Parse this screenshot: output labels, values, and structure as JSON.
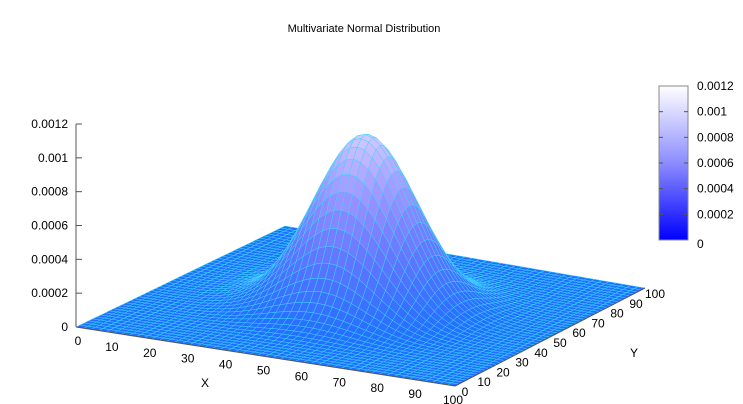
{
  "chart_data": {
    "type": "surface3d",
    "title": "Multivariate Normal Distribution",
    "xlabel": "X",
    "ylabel": "Y",
    "zlabel": "",
    "x_ticks": [
      0,
      10,
      20,
      30,
      40,
      50,
      60,
      70,
      80,
      90,
      100
    ],
    "y_ticks": [
      0,
      10,
      20,
      30,
      40,
      50,
      60,
      70,
      80,
      90,
      100
    ],
    "z_ticks": [
      "0",
      "0.0002",
      "0.0004",
      "0.0006",
      "0.0008",
      "0.001",
      "0.0012"
    ],
    "xlim": [
      0,
      100
    ],
    "ylim": [
      0,
      100
    ],
    "zlim": [
      0,
      0.0012
    ],
    "distribution": {
      "mean": [
        50,
        50
      ],
      "sigma": [
        12.5,
        12.5
      ],
      "peak_value": 0.00102
    },
    "grid_resolution": 50,
    "colorbar": {
      "ticks": [
        "0",
        "0.0002",
        "0.0004",
        "0.0006",
        "0.0008",
        "0.001",
        "0.0012"
      ],
      "min_color": "#0000ff",
      "max_color": "#ffffff"
    },
    "colors": {
      "floor": "#1e70ff",
      "mesh_line": "#3fd6ff",
      "axis": "#555555"
    }
  }
}
